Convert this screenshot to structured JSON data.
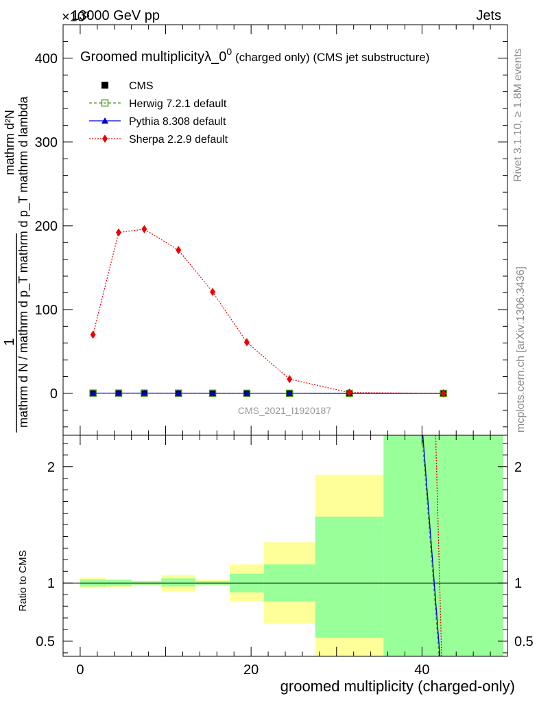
{
  "header": {
    "left": "13000 GeV pp",
    "right": "Jets",
    "exponent": "×10³"
  },
  "side_labels": {
    "rivet": "Rivet 3.1.10, ≥ 1.8M events",
    "mcplots": "mcplots.cern.ch [arXiv:1306.3436]"
  },
  "watermark": "CMS_2021_I1920187",
  "chart_data": [
    {
      "type": "line",
      "title": "Groomed multiplicityλ_0⁰ (charged only) (CMS jet substructure)",
      "title_parts": {
        "main": "Groomed multiplicityλ_0",
        "sup": "0",
        "tail": " (charged only) (CMS jet substructure)"
      },
      "ylabel_lines": [
        "1",
        "mathrm d N / mathrm d p_T mathrm d p_T mathrm d lambda",
        "mathrm d²N"
      ],
      "ylim": [
        -50,
        440
      ],
      "yticks": [
        0,
        100,
        200,
        300,
        400
      ],
      "xlim": [
        -2,
        50
      ],
      "legend_position": "top-left",
      "x": [
        1.5,
        4.5,
        7.5,
        11.5,
        15.5,
        19.5,
        24.5,
        31.5,
        42.5
      ],
      "series": [
        {
          "name": "CMS",
          "color": "#000000",
          "marker": "square",
          "values": [
            0.3,
            0.3,
            0.3,
            0.2,
            0.1,
            0.05,
            0.02,
            0.0,
            0.0
          ]
        },
        {
          "name": "Herwig 7.2.1 default",
          "color": "#4a9a1a",
          "marker": "open-square",
          "dash": "4,3",
          "values": [
            0.3,
            0.3,
            0.3,
            0.2,
            0.1,
            0.05,
            0.02,
            0.0,
            0.0
          ]
        },
        {
          "name": "Pythia 8.308 default",
          "color": "#0000cc",
          "marker": "triangle",
          "values": [
            0.3,
            0.3,
            0.3,
            0.2,
            0.1,
            0.05,
            0.02,
            0.0,
            0.0
          ]
        },
        {
          "name": "Sherpa 2.2.9 default",
          "color": "#ee0000",
          "marker": "diamond",
          "dash": "2,2",
          "values": [
            70,
            192,
            196,
            171,
            121,
            61,
            17,
            1,
            0
          ]
        }
      ]
    },
    {
      "type": "ratio",
      "ylabel": "Ratio to CMS",
      "xlabel": "groomed multiplicity (charged-only)",
      "ylim": [
        0.37,
        2.27
      ],
      "yticks": [
        0.5,
        1,
        2
      ],
      "xticks": [
        0,
        20,
        40
      ],
      "xlim": [
        -2,
        50
      ],
      "bands": [
        {
          "x0": 0,
          "x1": 3,
          "y_lo": 0.955,
          "y_hi": 1.045,
          "g_lo": 0.97,
          "g_hi": 1.03
        },
        {
          "x0": 3,
          "x1": 6,
          "y_lo": 0.965,
          "y_hi": 1.035,
          "g_lo": 0.975,
          "g_hi": 1.025
        },
        {
          "x0": 6,
          "x1": 9.5,
          "y_lo": 0.98,
          "y_hi": 1.02,
          "g_lo": 0.985,
          "g_hi": 1.015
        },
        {
          "x0": 9.5,
          "x1": 13.5,
          "y_lo": 0.93,
          "y_hi": 1.07,
          "g_lo": 0.97,
          "g_hi": 1.04
        },
        {
          "x0": 13.5,
          "x1": 17.5,
          "y_lo": 0.975,
          "y_hi": 1.025,
          "g_lo": 0.985,
          "g_hi": 1.015
        },
        {
          "x0": 17.5,
          "x1": 21.5,
          "y_lo": 0.84,
          "y_hi": 1.16,
          "g_lo": 0.92,
          "g_hi": 1.08
        },
        {
          "x0": 21.5,
          "x1": 27.5,
          "y_lo": 0.65,
          "y_hi": 1.35,
          "g_lo": 0.84,
          "g_hi": 1.16
        },
        {
          "x0": 27.5,
          "x1": 35.5,
          "y_lo": 0.35,
          "y_hi": 1.93,
          "g_lo": 0.53,
          "g_hi": 1.57
        },
        {
          "x0": 35.5,
          "x1": 49.5,
          "y_lo": 0.35,
          "y_hi": 2.27,
          "g_lo": 0.35,
          "g_hi": 2.27
        }
      ],
      "lines": [
        {
          "name": "Herwig 7.2.1 default",
          "color": "#4a9a1a",
          "dash": "4,3",
          "pts": [
            [
              40,
              2.27
            ],
            [
              42,
              0.37
            ]
          ]
        },
        {
          "name": "Pythia 8.308 default",
          "color": "#0000cc",
          "pts": [
            [
              40.1,
              2.27
            ],
            [
              42.1,
              0.37
            ]
          ]
        },
        {
          "name": "Sherpa 2.2.9 default",
          "color": "#ee0000",
          "dash": "2,2",
          "pts": [
            [
              41.6,
              2.27
            ],
            [
              42.3,
              0.37
            ]
          ]
        }
      ]
    }
  ]
}
